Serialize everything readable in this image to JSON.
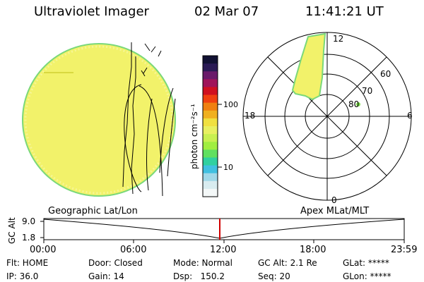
{
  "header": {
    "title": "Ultraviolet Imager",
    "date": "02 Mar 07",
    "time": "11:41:21 UT"
  },
  "colorbar": {
    "unit": "photon cm⁻²s⁻¹",
    "ticks": [
      "100",
      "10"
    ],
    "colors": [
      "#111133",
      "#2a1a55",
      "#6a1a6a",
      "#a0145a",
      "#d01020",
      "#f04010",
      "#f08010",
      "#f0b020",
      "#f0e040",
      "#e8f060",
      "#c8f050",
      "#a0ee40",
      "#60e060",
      "#30d0a0",
      "#40c0e0",
      "#a0d8e8",
      "#d8ecf0",
      "#f4f8f8"
    ]
  },
  "polar": {
    "labels": {
      "top": "12",
      "left": "18",
      "right": "6",
      "bottom": "0",
      "lat60": "60",
      "lat70": "70",
      "lat80": "80"
    }
  },
  "timeline": {
    "left_caption": "Geographic Lat/Lon",
    "right_caption": "Apex MLat/MLT",
    "y_axis_label": "GC Alt",
    "y_ticks": [
      "9.0",
      "1.8"
    ],
    "x_ticks": [
      "00:00",
      "06:00",
      "12:00",
      "18:00",
      "23:59"
    ],
    "marker_time": "11:41",
    "marker_color": "#d00000"
  },
  "status": {
    "flt": "Flt: HOME",
    "ip": "IP: 36.0",
    "door": "Door: Closed",
    "gain": "Gain: 14",
    "mode": "Mode: Normal",
    "dsp": "Dsp:   150.2",
    "gcalt": "GC Alt: 2.1 Re",
    "seq": "Seq: 20",
    "glat": "GLat: *****",
    "glon": "GLon: *****"
  }
}
